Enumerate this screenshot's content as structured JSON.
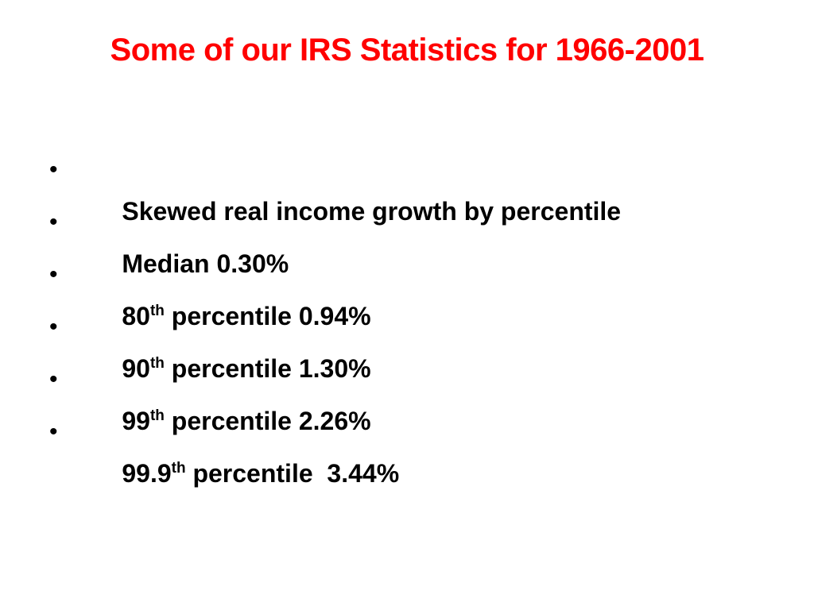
{
  "slide": {
    "title": "Some of our IRS Statistics for 1966-2001",
    "title_color": "#ff0000",
    "bullets": [
      {
        "main": "Skewed real income growth by percentile",
        "sup": "",
        "rest": ""
      },
      {
        "main": "Median 0.30%",
        "sup": "",
        "rest": ""
      },
      {
        "main": "80",
        "sup": "th",
        "rest": " percentile 0.94%"
      },
      {
        "main": "90",
        "sup": "th",
        "rest": " percentile 1.30%"
      },
      {
        "main": "99",
        "sup": "th",
        "rest": " percentile 2.26%"
      },
      {
        "main": "99.9",
        "sup": "th",
        "rest": " percentile  3.44%"
      }
    ],
    "bullet_glyph": "•"
  }
}
